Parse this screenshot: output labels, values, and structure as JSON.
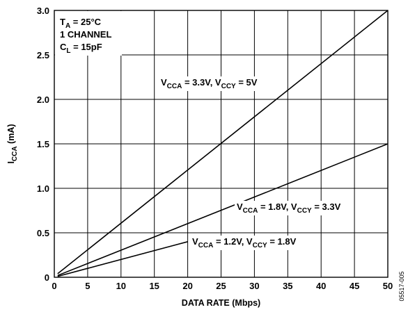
{
  "chart_data": {
    "type": "line",
    "title": "",
    "xlabel": "DATA RATE (Mbps)",
    "ylabel": {
      "main": "I",
      "sub": "CCA",
      "rest": " (mA)"
    },
    "xlim": [
      0,
      50
    ],
    "ylim": [
      0,
      3.0
    ],
    "x_ticks": [
      "0",
      "5",
      "10",
      "15",
      "20",
      "25",
      "30",
      "35",
      "40",
      "45",
      "50"
    ],
    "y_ticks": [
      "0",
      "0.5",
      "1.0",
      "1.5",
      "2.0",
      "2.5",
      "3.0"
    ],
    "grid": true,
    "conditions": [
      {
        "main": "T",
        "sub": "A",
        "rest": " = 25°C"
      },
      {
        "main": "1 CHANNEL",
        "sub": "",
        "rest": ""
      },
      {
        "main": "C",
        "sub": "L",
        "rest": " = 15pF"
      }
    ],
    "series": [
      {
        "name": "V_CCA = 3.3V, V_CCY = 5V",
        "label_parts": [
          {
            "t": "V",
            "sub": false
          },
          {
            "t": "CCA",
            "sub": true
          },
          {
            "t": " = 3.3V, V",
            "sub": false
          },
          {
            "t": "CCY",
            "sub": true
          },
          {
            "t": " = 5V",
            "sub": false
          }
        ],
        "x": [
          0.5,
          50
        ],
        "y": [
          0.04,
          3.0
        ]
      },
      {
        "name": "V_CCA = 1.8V, V_CCY = 3.3V",
        "label_parts": [
          {
            "t": "V",
            "sub": false
          },
          {
            "t": "CCA",
            "sub": true
          },
          {
            "t": " = 1.8V, V",
            "sub": false
          },
          {
            "t": "CCY",
            "sub": true
          },
          {
            "t": " = 3.3V",
            "sub": false
          }
        ],
        "x": [
          0.5,
          50
        ],
        "y": [
          0.02,
          1.5
        ]
      },
      {
        "name": "V_CCA = 1.2V, V_CCY = 1.8V",
        "label_parts": [
          {
            "t": "V",
            "sub": false
          },
          {
            "t": "CCA",
            "sub": true
          },
          {
            "t": " = 1.2V, V",
            "sub": false
          },
          {
            "t": "CCY",
            "sub": true
          },
          {
            "t": " = 1.8V",
            "sub": false
          }
        ],
        "x": [
          0.5,
          20
        ],
        "y": [
          0.01,
          0.4
        ]
      }
    ],
    "figure_id": "05517-005"
  }
}
